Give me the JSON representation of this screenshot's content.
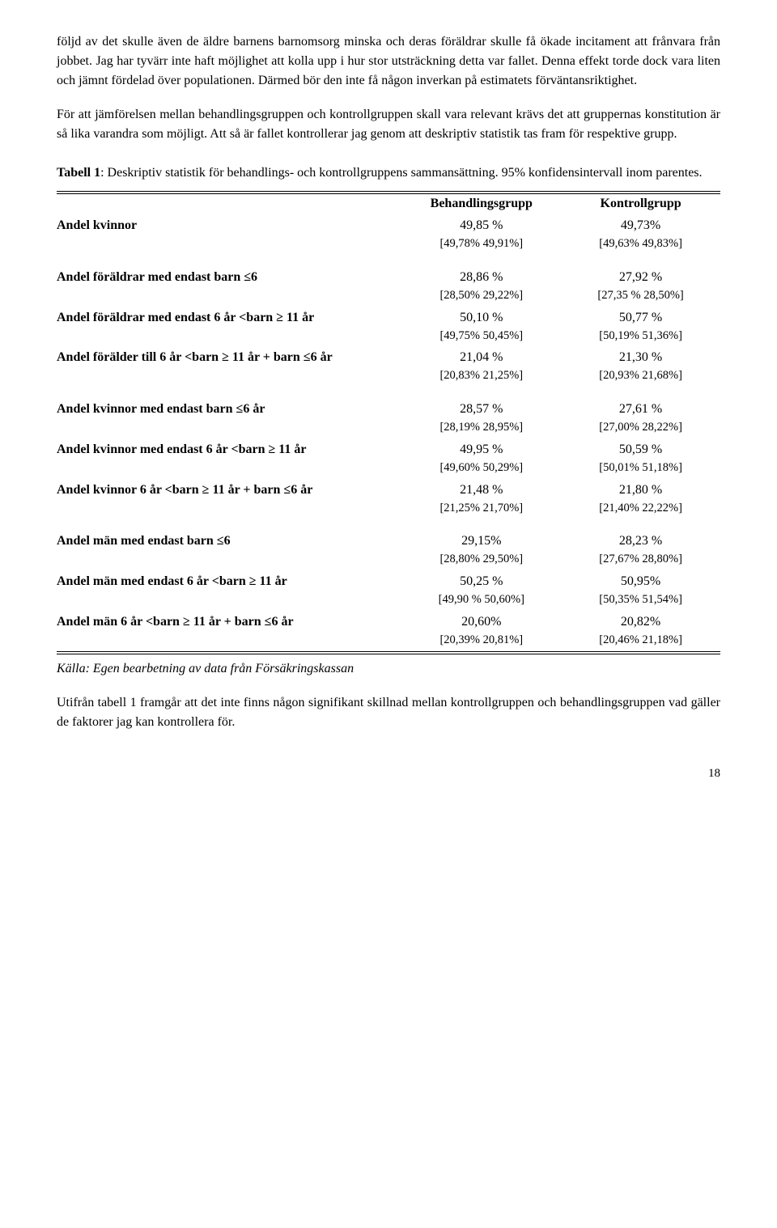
{
  "paragraphs": {
    "p1": "följd av det skulle även de äldre barnens barnomsorg minska och deras föräldrar skulle få ökade incitament att frånvara från jobbet. Jag har tyvärr inte haft möjlighet att kolla upp i hur stor utsträckning detta var fallet. Denna effekt torde dock vara liten och jämnt fördelad över populationen. Därmed bör den inte få någon inverkan på estimatets förväntansriktighet.",
    "p2": "För att jämförelsen mellan behandlingsgruppen och kontrollgruppen skall vara relevant krävs det att gruppernas konstitution är så lika varandra som möjligt. Att så är fallet kontrollerar jag genom att deskriptiv statistik tas fram för respektive grupp."
  },
  "caption": {
    "lead": "Tabell 1",
    "rest": ": Deskriptiv statistik för behandlings- och kontrollgruppens sammansättning. 95% konfidensintervall inom parentes."
  },
  "headers": {
    "behandling": "Behandlingsgrupp",
    "kontroll": "Kontrollgrupp"
  },
  "rows": [
    {
      "label": "Andel kvinnor",
      "b_val": "49,85 %",
      "b_ci": "[49,78%  49,91%]",
      "k_val": "49,73%",
      "k_ci": "[49,63% 49,83%]"
    }
  ],
  "group2": [
    {
      "label": "Andel föräldrar med endast barn ≤6",
      "b_val": "28,86 %",
      "b_ci": "[28,50% 29,22%]",
      "k_val": "27,92 %",
      "k_ci": "[27,35 % 28,50%]"
    },
    {
      "label": "Andel föräldrar med endast 6 år <barn ≥ 11 år",
      "b_val": "50,10 %",
      "b_ci": "[49,75%  50,45%]",
      "k_val": "50,77 %",
      "k_ci": "[50,19% 51,36%]"
    },
    {
      "label": "Andel förälder till 6 år <barn ≥ 11 år + barn ≤6 år",
      "b_val": "21,04 %",
      "b_ci": "[20,83% 21,25%]",
      "k_val": "21,30 %",
      "k_ci": "[20,93%  21,68%]"
    }
  ],
  "group3": [
    {
      "label": "Andel kvinnor med endast barn ≤6 år",
      "b_val": "28,57 %",
      "b_ci": "[28,19%   28,95%]",
      "k_val": "27,61 %",
      "k_ci": "[27,00%  28,22%]"
    },
    {
      "label": "Andel kvinnor med endast 6 år <barn ≥ 11 år",
      "b_val": "49,95 %",
      "b_ci": "[49,60%   50,29%]",
      "k_val": "50,59 %",
      "k_ci": "[50,01%   51,18%]"
    },
    {
      "label": "Andel kvinnor 6 år <barn ≥ 11 år + barn ≤6 år",
      "b_val": "21,48 %",
      "b_ci": "[21,25%   21,70%]",
      "k_val": "21,80 %",
      "k_ci": "[21,40%  22,22%]"
    }
  ],
  "group4": [
    {
      "label": "Andel män med endast barn ≤6",
      "b_val": "29,15%",
      "b_ci": "[28,80% 29,50%]",
      "k_val": "28,23 %",
      "k_ci": "[27,67% 28,80%]"
    },
    {
      "label": "Andel män med endast 6 år <barn ≥ 11 år",
      "b_val": "50,25 %",
      "b_ci": "[49,90 % 50,60%]",
      "k_val": "50,95%",
      "k_ci": "[50,35%  51,54%]"
    },
    {
      "label": "Andel män 6 år <barn ≥ 11 år + barn ≤6 år",
      "b_val": "20,60%",
      "b_ci": "[20,39%  20,81%]",
      "k_val": "20,82%",
      "k_ci": "[20,46% 21,18%]"
    }
  ],
  "source": "Källa: Egen bearbetning av data från Försäkringskassan",
  "closing": "Utifrån tabell 1 framgår att det inte finns någon signifikant skillnad mellan kontrollgruppen och behandlingsgruppen vad gäller de faktorer jag kan kontrollera för.",
  "page": "18"
}
